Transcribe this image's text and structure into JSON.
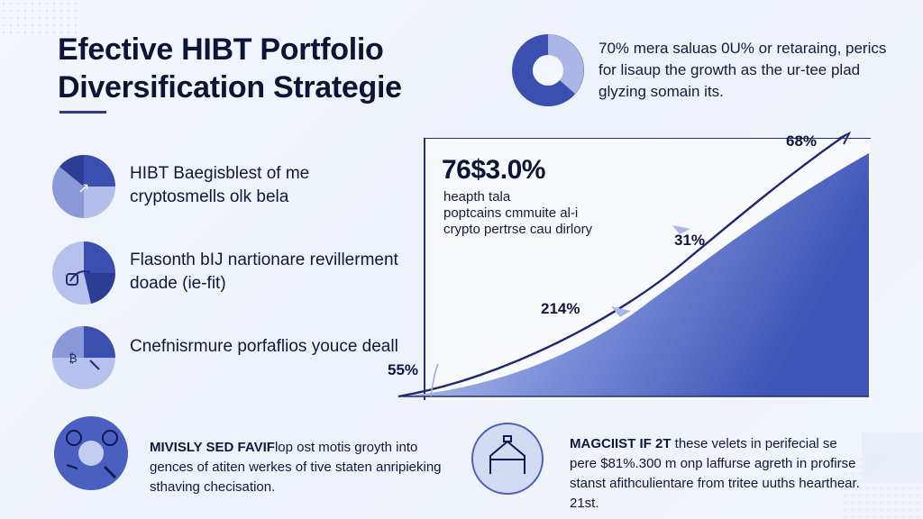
{
  "title": {
    "line1": "Efective HIBT Portfolio",
    "line2": "Diversification Strategie"
  },
  "top_note": {
    "text": "70% mera saluas 0U% or retaraing, perics for lisaup the growth as the ur-tee plad glyzing somain its."
  },
  "features": [
    {
      "text": "HIBT Baegisblest of me cryptosmells olk bela",
      "icon": "pie-chart-icon"
    },
    {
      "text": "Flasonth bIJ nartionare revillerment doade (ie-fit)",
      "icon": "pie-chart-icon"
    },
    {
      "text": "Cnefnisrmure porfaflios youce deall",
      "icon": "pie-chart-icon"
    }
  ],
  "bottom_left": {
    "lead": "MIVISLY SED FAVIF",
    "text": "lop ost motis groyth into gences of atiten werkes of tive staten anripieking sthaving checisation.",
    "icon": "crypto-coins-icon"
  },
  "bottom_right": {
    "lead": "MAGCIIST IF 2T",
    "text": "these velets in perifecial se pere $81%.300 m onp laffurse agreth in profirse stanst afithculientare from tritee uuths hearthear. 21st.",
    "icon": "house-icon"
  },
  "stat": {
    "value": "76$3.0%",
    "desc1": "heapth tala",
    "desc2": "poptcains cmmuite al-i",
    "desc3": "crypto pertrse cau dirlory"
  },
  "chart_data": {
    "type": "area",
    "annotations": [
      "55%",
      "214%",
      "31%",
      "68%"
    ],
    "points": [
      {
        "label": "55%"
      },
      {
        "label": "214%"
      },
      {
        "label": "31%"
      },
      {
        "label": "68%"
      }
    ]
  },
  "colors": {
    "primary": "#3a4fb0",
    "light": "#a9b6e6",
    "dark_text": "#0d1536"
  }
}
